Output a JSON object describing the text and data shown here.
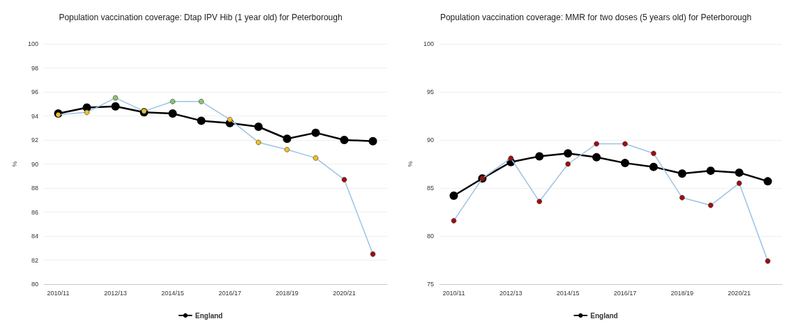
{
  "chart_data": [
    {
      "type": "line",
      "title": "Population vaccination coverage: Dtap IPV Hib (1 year old) for Peterborough",
      "ylabel": "%",
      "categories": [
        "2010/11",
        null,
        "2012/13",
        null,
        "2014/15",
        null,
        "2016/17",
        null,
        "2018/19",
        null,
        "2020/21",
        null
      ],
      "series": [
        {
          "color": "#9cc3e5",
          "colors": [
            "#f0c020",
            "#f0c020",
            "#8dc26f",
            "#f0c020",
            "#8dc26f",
            "#8dc26f",
            "#f0c020",
            "#f0c020",
            "#f0c020",
            "#f0c020",
            "#a00d0d",
            "#a00d0d"
          ],
          "values": [
            94.1,
            94.3,
            95.5,
            94.4,
            95.2,
            95.2,
            93.7,
            91.8,
            91.2,
            90.5,
            88.7,
            82.5
          ]
        },
        {
          "name": "England",
          "color": "#000000",
          "values": [
            94.2,
            94.7,
            94.8,
            94.3,
            94.2,
            93.6,
            93.4,
            93.1,
            92.1,
            92.6,
            92.0,
            91.9
          ]
        }
      ],
      "ylim": [
        80,
        100
      ],
      "yticks": [
        80,
        82,
        84,
        86,
        88,
        90,
        92,
        94,
        96,
        98,
        100
      ],
      "grid": "y",
      "legend": "bottom",
      "marker": "circle",
      "line_style": "solid"
    },
    {
      "type": "line",
      "title": "Population vaccination coverage: MMR for two doses (5 years old) for Peterborough",
      "ylabel": "%",
      "categories": [
        "2010/11",
        null,
        "2012/13",
        null,
        "2014/15",
        null,
        "2016/17",
        null,
        "2018/19",
        null,
        "2020/21",
        null
      ],
      "series": [
        {
          "color": "#9cc3e5",
          "colors": [
            "#a00d0d",
            "#a00d0d",
            "#a00d0d",
            "#a00d0d",
            "#a00d0d",
            "#a00d0d",
            "#a00d0d",
            "#a00d0d",
            "#a00d0d",
            "#a00d0d",
            "#a00d0d",
            "#a00d0d"
          ],
          "values": [
            81.6,
            86.0,
            88.1,
            83.6,
            87.5,
            89.6,
            89.6,
            88.6,
            84.0,
            83.2,
            85.5,
            77.4
          ]
        },
        {
          "name": "England",
          "color": "#000000",
          "values": [
            84.2,
            86.0,
            87.7,
            88.3,
            88.6,
            88.2,
            87.6,
            87.2,
            86.5,
            86.8,
            86.6,
            85.7
          ]
        }
      ],
      "ylim": [
        75,
        100
      ],
      "yticks": [
        75,
        80,
        85,
        90,
        95,
        100
      ],
      "grid": "y",
      "legend": "bottom",
      "marker": "circle",
      "line_style": "solid"
    }
  ]
}
